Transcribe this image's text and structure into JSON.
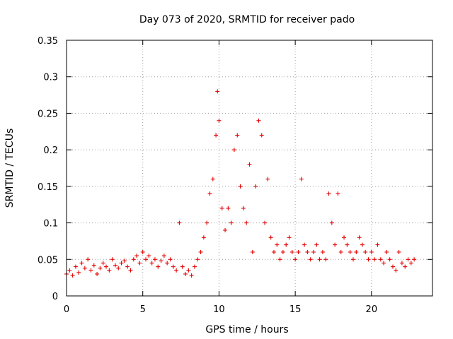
{
  "chart_data": {
    "type": "scatter",
    "title": "Day 073 of 2020, SRMTID for receiver pado",
    "xlabel": "GPS time / hours",
    "ylabel": "SRMTID / TECUs",
    "xlim": [
      0,
      24
    ],
    "ylim": [
      0,
      0.35
    ],
    "grid": true,
    "marker": "+",
    "marker_color": "#e60000",
    "x_ticks": [
      0,
      5,
      10,
      15,
      20
    ],
    "x_tick_labels": [
      "0",
      "5",
      "10",
      "15",
      "20"
    ],
    "y_ticks": [
      0,
      0.05,
      0.1,
      0.15,
      0.2,
      0.25,
      0.3,
      0.35
    ],
    "y_tick_labels": [
      "0",
      "0.05",
      "0.1",
      "0.15",
      "0.2",
      "0.25",
      "0.3",
      "0.35"
    ],
    "series": [
      {
        "name": "SRMTID",
        "x": [
          0.0,
          0.2,
          0.4,
          0.6,
          0.8,
          1.0,
          1.2,
          1.4,
          1.6,
          1.8,
          2.0,
          2.2,
          2.4,
          2.6,
          2.8,
          3.0,
          3.2,
          3.4,
          3.6,
          3.8,
          4.0,
          4.2,
          4.4,
          4.6,
          4.8,
          5.0,
          5.2,
          5.4,
          5.6,
          5.8,
          6.0,
          6.2,
          6.4,
          6.6,
          6.8,
          7.0,
          7.2,
          7.4,
          7.6,
          7.8,
          8.0,
          8.2,
          8.4,
          8.6,
          8.8,
          9.0,
          9.2,
          9.4,
          9.6,
          9.8,
          9.9,
          10.0,
          10.2,
          10.4,
          10.6,
          10.8,
          11.0,
          11.2,
          11.4,
          11.6,
          11.8,
          12.0,
          12.2,
          12.4,
          12.6,
          12.8,
          13.0,
          13.2,
          13.4,
          13.6,
          13.8,
          14.0,
          14.2,
          14.4,
          14.6,
          14.8,
          15.0,
          15.2,
          15.4,
          15.6,
          15.8,
          16.0,
          16.2,
          16.4,
          16.6,
          16.8,
          17.0,
          17.2,
          17.4,
          17.6,
          17.8,
          18.0,
          18.2,
          18.4,
          18.6,
          18.8,
          19.0,
          19.2,
          19.4,
          19.6,
          19.8,
          20.0,
          20.2,
          20.4,
          20.6,
          20.8,
          21.0,
          21.2,
          21.4,
          21.6,
          21.8,
          22.0,
          22.2,
          22.4,
          22.6,
          22.8
        ],
        "y": [
          0.03,
          0.035,
          0.028,
          0.04,
          0.032,
          0.045,
          0.038,
          0.05,
          0.035,
          0.042,
          0.03,
          0.038,
          0.045,
          0.04,
          0.035,
          0.05,
          0.042,
          0.038,
          0.045,
          0.048,
          0.04,
          0.035,
          0.05,
          0.055,
          0.045,
          0.06,
          0.05,
          0.055,
          0.045,
          0.05,
          0.04,
          0.048,
          0.055,
          0.045,
          0.05,
          0.04,
          0.035,
          0.1,
          0.04,
          0.03,
          0.035,
          0.028,
          0.04,
          0.05,
          0.06,
          0.08,
          0.1,
          0.14,
          0.16,
          0.22,
          0.28,
          0.24,
          0.12,
          0.09,
          0.12,
          0.1,
          0.2,
          0.22,
          0.15,
          0.12,
          0.1,
          0.18,
          0.06,
          0.15,
          0.24,
          0.22,
          0.1,
          0.16,
          0.08,
          0.06,
          0.07,
          0.05,
          0.06,
          0.07,
          0.08,
          0.06,
          0.05,
          0.06,
          0.16,
          0.07,
          0.06,
          0.05,
          0.06,
          0.07,
          0.05,
          0.06,
          0.05,
          0.14,
          0.1,
          0.07,
          0.14,
          0.06,
          0.08,
          0.07,
          0.06,
          0.05,
          0.06,
          0.08,
          0.07,
          0.06,
          0.05,
          0.06,
          0.05,
          0.07,
          0.05,
          0.045,
          0.06,
          0.05,
          0.04,
          0.035,
          0.06,
          0.045,
          0.04,
          0.05,
          0.045,
          0.05
        ]
      }
    ]
  }
}
